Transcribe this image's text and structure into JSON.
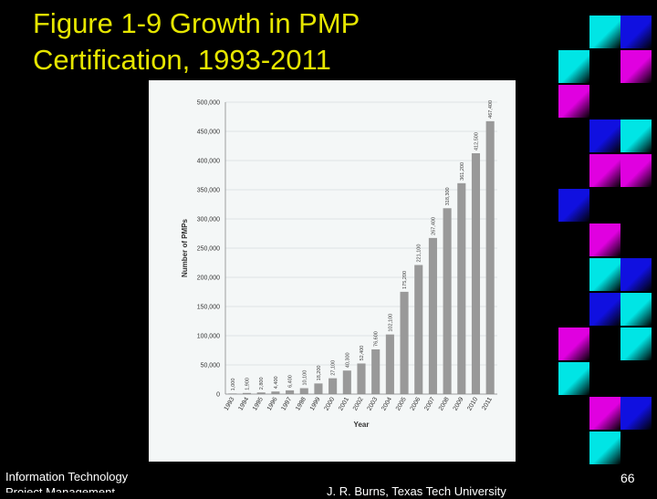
{
  "slide": {
    "title_line1": "Figure 1-9 Growth in PMP",
    "title_line2": "Certification, 1993-2011",
    "footer_left_line1": "Information Technology",
    "footer_left_line2": "Project Management",
    "footer_center": "J. R. Burns, Texas Tech University",
    "page_number": "66",
    "title_color": "#e6e600",
    "tile_colors": {
      "cyan": "#00e5e5",
      "blue": "#1010e0",
      "magenta": "#e000e0"
    }
  },
  "chart_data": {
    "type": "bar",
    "xlabel": "Year",
    "ylabel": "Number of PMPs",
    "ylim": [
      0,
      500000
    ],
    "yticks": [
      "0",
      "50,000",
      "100,000",
      "150,000",
      "200,000",
      "250,000",
      "300,000",
      "350,000",
      "400,000",
      "450,000",
      "500,000"
    ],
    "ytick_values": [
      0,
      50000,
      100000,
      150000,
      200000,
      250000,
      300000,
      350000,
      400000,
      450000,
      500000
    ],
    "grid": true,
    "bar_color": "#999999",
    "categories": [
      "1993",
      "1994",
      "1995",
      "1996",
      "1997",
      "1998",
      "1999",
      "2000",
      "2001",
      "2002",
      "2003",
      "2004",
      "2005",
      "2006",
      "2007",
      "2008",
      "2009",
      "2010",
      "2011"
    ],
    "values": [
      1000,
      1900,
      2800,
      4400,
      6400,
      10100,
      18200,
      27100,
      40300,
      52400,
      76600,
      102100,
      175200,
      221100,
      267400,
      318300,
      361200,
      412500,
      467400
    ],
    "value_labels": [
      "1,000",
      "1,900",
      "2,800",
      "4,400",
      "6,400",
      "10,100",
      "18,200",
      "27,100",
      "40,300",
      "52,400",
      "76,600",
      "102,100",
      "175,200",
      "221,100",
      "267,400",
      "318,300",
      "361,200",
      "412,500",
      "467,400"
    ]
  }
}
